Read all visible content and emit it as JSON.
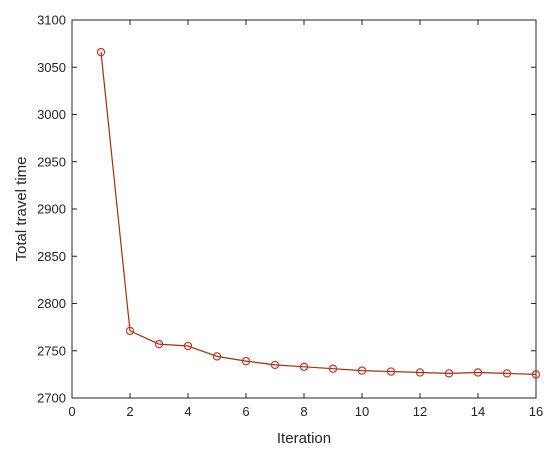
{
  "chart_data": {
    "type": "line",
    "title": "",
    "xlabel": "Iteration",
    "ylabel": "Total travel time",
    "xlim": [
      0,
      16
    ],
    "ylim": [
      2700,
      3100
    ],
    "xticks": [
      0,
      2,
      4,
      6,
      8,
      10,
      12,
      14,
      16
    ],
    "yticks": [
      2700,
      2750,
      2800,
      2850,
      2900,
      2950,
      3000,
      3050,
      3100
    ],
    "grid": false,
    "legend": "none",
    "line_color": "#a0300e",
    "marker": "circle",
    "marker_color": "#c0392b",
    "series": [
      {
        "x": [
          1,
          2,
          3,
          4,
          5,
          6,
          7,
          8,
          9,
          10,
          11,
          12,
          13,
          14,
          15,
          16
        ],
        "y": [
          3066,
          2771,
          2757,
          2755,
          2744,
          2739,
          2735,
          2733,
          2731,
          2729,
          2728,
          2727,
          2726,
          2727,
          2726,
          2725
        ]
      }
    ]
  }
}
